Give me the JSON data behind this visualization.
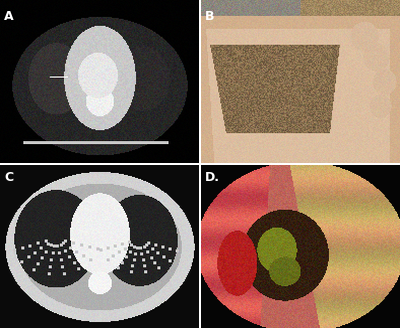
{
  "fig_width": 4.0,
  "fig_height": 3.28,
  "dpi": 100,
  "panel_labels": [
    "A",
    "B",
    "C",
    "D"
  ],
  "label_color_white": "#ffffff",
  "label_color_dark": "#222222",
  "label_fontsize": 9,
  "label_fontweight": "bold",
  "border_color": "#aaaaaa",
  "white_sep": "#ffffff",
  "panel_A_bg": [
    10,
    10,
    10
  ],
  "panel_B_bg": [
    180,
    140,
    100
  ],
  "panel_C_bg": [
    30,
    30,
    30
  ],
  "panel_D_bg": [
    80,
    30,
    30
  ]
}
